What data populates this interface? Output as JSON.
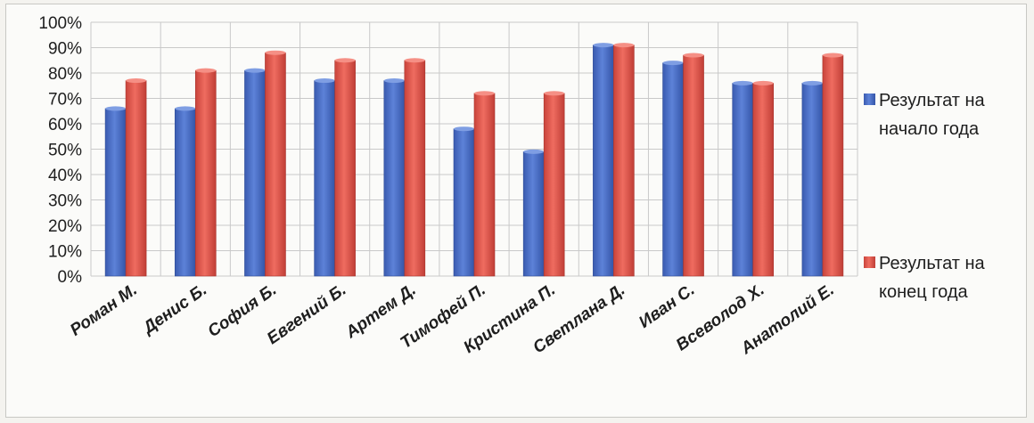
{
  "chart_data": {
    "type": "bar",
    "title": "",
    "xlabel": "",
    "ylabel": "",
    "ylim": [
      0,
      100
    ],
    "y_ticks": [
      "0%",
      "10%",
      "20%",
      "30%",
      "40%",
      "50%",
      "60%",
      "70%",
      "80%",
      "90%",
      "100%"
    ],
    "grid": true,
    "legend_position": "right",
    "categories": [
      "Роман М.",
      "Денис Б.",
      "София Б.",
      "Евгений Б.",
      "Артем Д.",
      "Тимофей П.",
      "Кристина П.",
      "Светлана Д.",
      "Иван С.",
      "Всеволод Х.",
      "Анатолий Е."
    ],
    "series": [
      {
        "name": "Результат на начало года",
        "legend_lines": [
          "Результат на",
          "начало года"
        ],
        "color": "#4a6fc9",
        "values": [
          66,
          66,
          81,
          77,
          77,
          58,
          49,
          91,
          84,
          76,
          76
        ]
      },
      {
        "name": "Результат на конец года",
        "legend_lines": [
          "Результат на",
          "конец года"
        ],
        "color": "#e0554b",
        "values": [
          77,
          81,
          88,
          85,
          85,
          72,
          72,
          91,
          87,
          76,
          87
        ]
      }
    ]
  }
}
